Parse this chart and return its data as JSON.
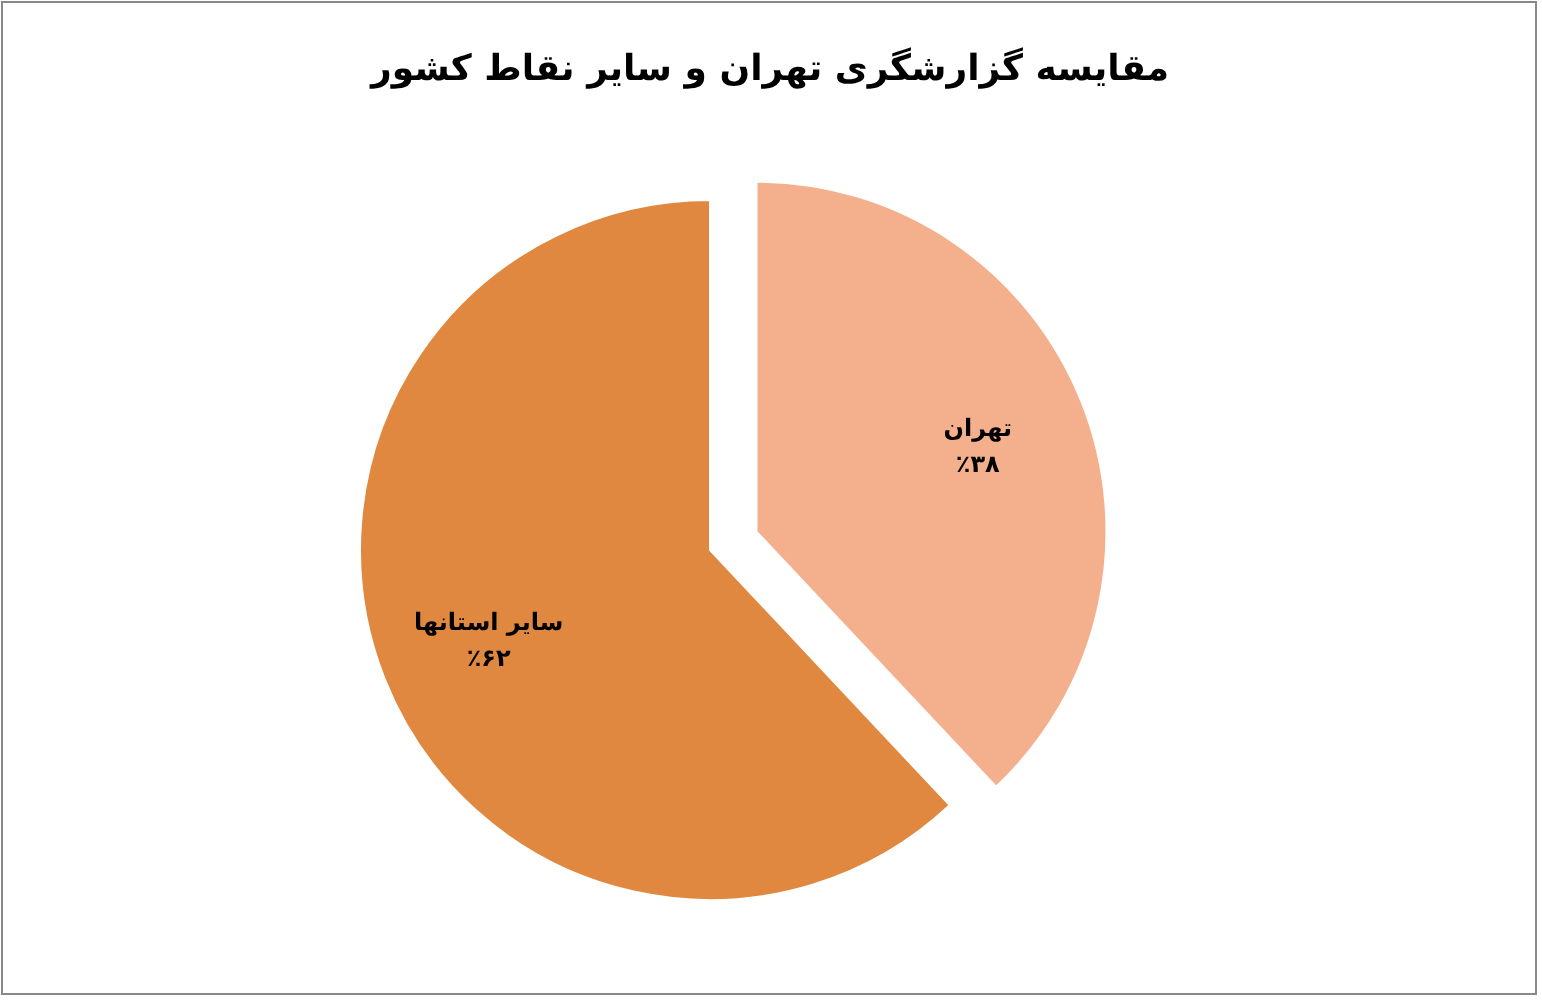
{
  "chart_data": {
    "type": "pie",
    "title": "مقایسه گزارشگری تهران و سایر نقاط کشور",
    "categories": [
      "تهران",
      "سایر استانها"
    ],
    "values": [
      38,
      62
    ],
    "value_labels": [
      "٪۳۸",
      "٪۶۲"
    ],
    "colors": [
      "#f4b08c",
      "#e0883f"
    ]
  }
}
